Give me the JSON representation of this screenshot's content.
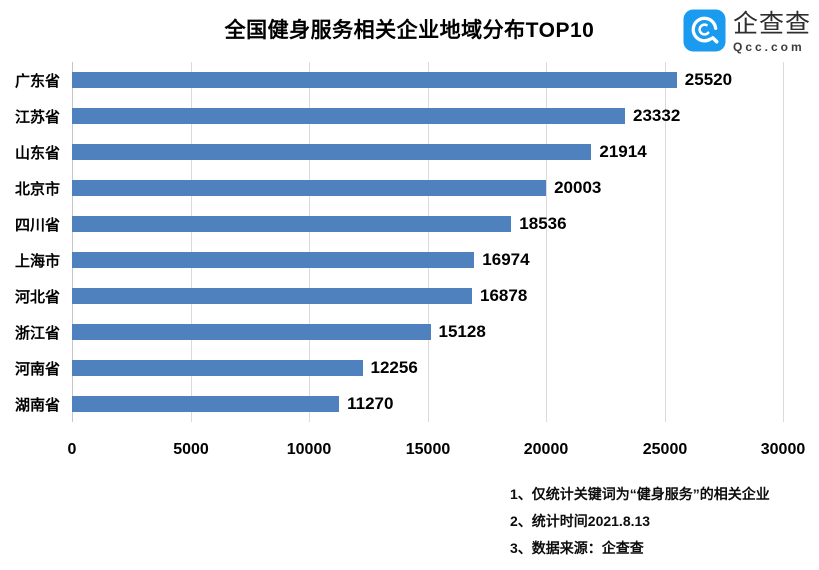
{
  "title": "全国健身服务相关企业地域分布TOP10",
  "logo": {
    "name": "企查查",
    "domain": "Qcc.com",
    "brand_color": "#1a9bf0"
  },
  "chart_data": {
    "type": "bar",
    "orientation": "horizontal",
    "title": "全国健身服务相关企业地域分布TOP10",
    "categories": [
      "广东省",
      "江苏省",
      "山东省",
      "北京市",
      "四川省",
      "上海市",
      "河北省",
      "浙江省",
      "河南省",
      "湖南省"
    ],
    "values": [
      25520,
      23332,
      21914,
      20003,
      18536,
      16974,
      16878,
      15128,
      12256,
      11270
    ],
    "xlabel": "",
    "ylabel": "",
    "xlim": [
      0,
      30000
    ],
    "xticks": [
      0,
      5000,
      10000,
      15000,
      20000,
      25000,
      30000
    ],
    "grid": true,
    "bar_color": "#4e81bd",
    "gridline_color": "#dadada",
    "legend": false
  },
  "notes": [
    "1、仅统计关键词为“健身服务”的相关企业",
    "2、统计时间2021.8.13",
    "3、数据来源：企查查"
  ]
}
